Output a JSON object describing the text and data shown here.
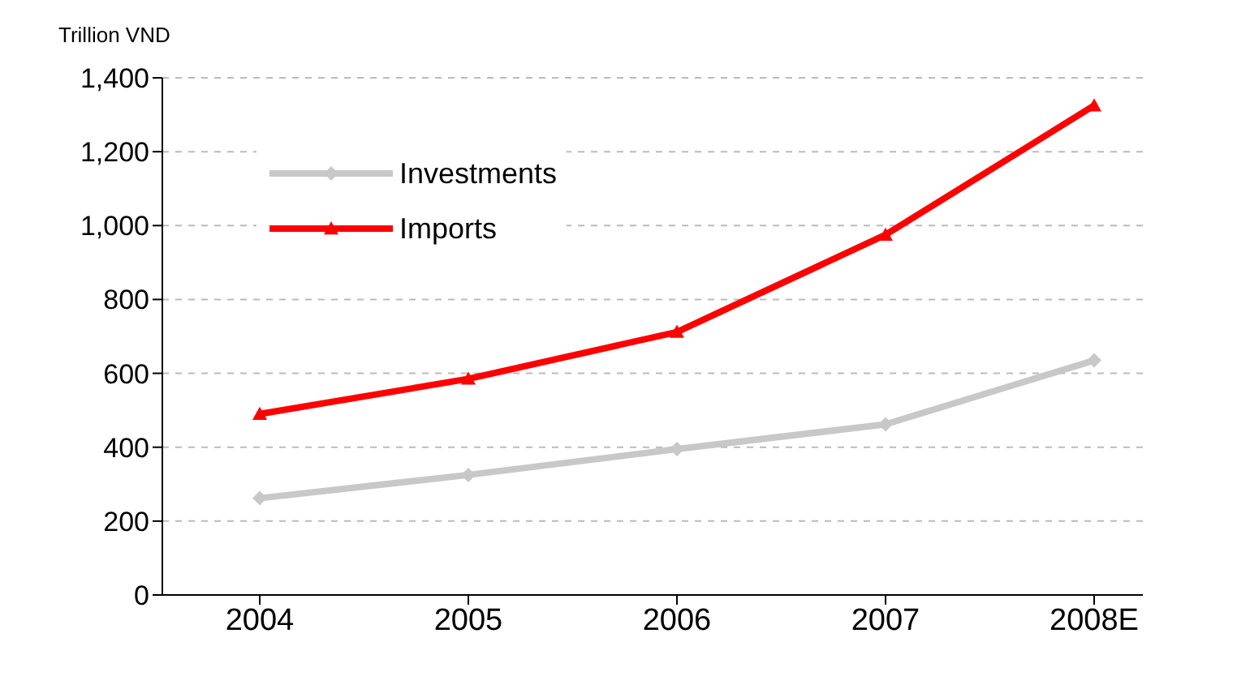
{
  "chart_data": {
    "type": "line",
    "ylabel": "Trillion VND",
    "categories": [
      "2004",
      "2005",
      "2006",
      "2007",
      "2008E"
    ],
    "series": [
      {
        "name": "Investments",
        "color": "#c8c8c8",
        "marker": "diamond",
        "values": [
          262,
          325,
          395,
          462,
          635
        ]
      },
      {
        "name": "Imports",
        "color": "#ff0000",
        "marker": "triangle",
        "values": [
          490,
          585,
          712,
          975,
          1325
        ]
      }
    ],
    "ylim": [
      0,
      1400
    ],
    "yticks": [
      0,
      {
        "value": 200,
        "label": "200"
      },
      {
        "value": 400,
        "label": "400"
      },
      {
        "value": 600,
        "label": "600"
      },
      {
        "value": 800,
        "label": "800"
      },
      {
        "value": 1000,
        "label": "1,000"
      },
      {
        "value": 1200,
        "label": "1,200"
      },
      {
        "value": 1400,
        "label": "1,400"
      }
    ],
    "grid": "y",
    "legend": "top left"
  }
}
